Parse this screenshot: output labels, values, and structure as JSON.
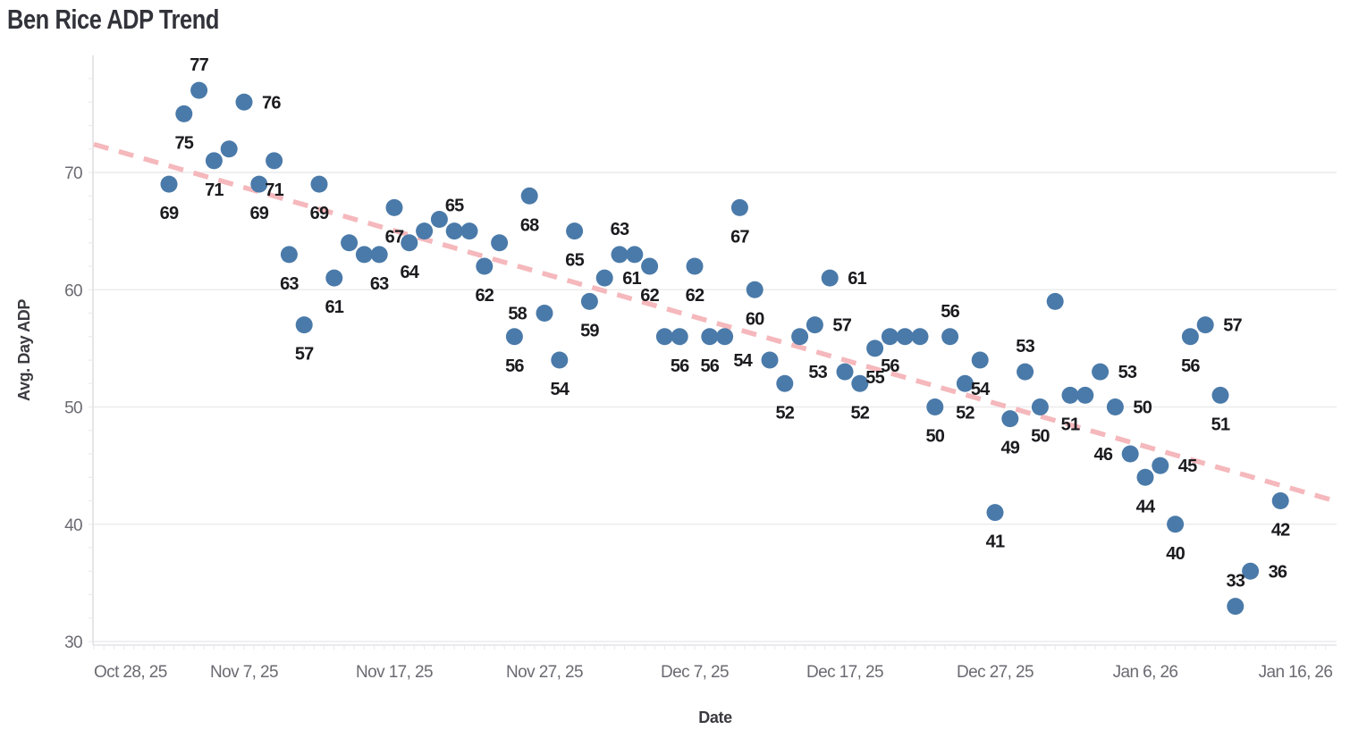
{
  "page_title": "Ben Rice ADP Trend",
  "chart_data": {
    "type": "scatter",
    "title": "Ben Rice ADP Trend",
    "xlabel": "Date",
    "ylabel": "Avg. Day ADP",
    "x_axis_start_date": "2025-10-28",
    "x_tick_labels": [
      "Oct 28, 25",
      "Nov 7, 25",
      "Nov 17, 25",
      "Nov 27, 25",
      "Dec 7, 25",
      "Dec 17, 25",
      "Dec 27, 25",
      "Jan 6, 26",
      "Jan 16, 26"
    ],
    "x_tick_day_offsets": [
      0,
      10,
      20,
      30,
      40,
      50,
      60,
      70,
      80
    ],
    "y_ticks": [
      30,
      40,
      50,
      60,
      70
    ],
    "ylim": [
      29.5,
      80
    ],
    "grid": true,
    "legend": "none",
    "point_color": "#4a7aa9",
    "point_radius": 9.5,
    "trend_color": "#f5b8bc",
    "trend_line": {
      "style": "dashed",
      "start_day": 0,
      "start_value": 72.4,
      "end_day": 82.6,
      "end_value": 42.0
    },
    "points": [
      {
        "date": "2025-11-02",
        "value": 69,
        "label": "69",
        "label_pos": "below"
      },
      {
        "date": "2025-11-03",
        "value": 75,
        "label": "75",
        "label_pos": "below"
      },
      {
        "date": "2025-11-04",
        "value": 77,
        "label": "77",
        "label_pos": "above"
      },
      {
        "date": "2025-11-05",
        "value": 71,
        "label": "71",
        "label_pos": "below"
      },
      {
        "date": "2025-11-06",
        "value": 72,
        "label": "",
        "label_pos": "none"
      },
      {
        "date": "2025-11-07",
        "value": 76,
        "label": "76",
        "label_pos": "right"
      },
      {
        "date": "2025-11-08",
        "value": 69,
        "label": "69",
        "label_pos": "below"
      },
      {
        "date": "2025-11-09",
        "value": 71,
        "label": "71",
        "label_pos": "below"
      },
      {
        "date": "2025-11-10",
        "value": 63,
        "label": "63",
        "label_pos": "below"
      },
      {
        "date": "2025-11-11",
        "value": 57,
        "label": "57",
        "label_pos": "below"
      },
      {
        "date": "2025-11-12",
        "value": 69,
        "label": "69",
        "label_pos": "below"
      },
      {
        "date": "2025-11-13",
        "value": 61,
        "label": "61",
        "label_pos": "below"
      },
      {
        "date": "2025-11-14",
        "value": 64,
        "label": "",
        "label_pos": "none"
      },
      {
        "date": "2025-11-15",
        "value": 63,
        "label": "",
        "label_pos": "none"
      },
      {
        "date": "2025-11-16",
        "value": 63,
        "label": "63",
        "label_pos": "below"
      },
      {
        "date": "2025-11-17",
        "value": 67,
        "label": "67",
        "label_pos": "below"
      },
      {
        "date": "2025-11-18",
        "value": 64,
        "label": "64",
        "label_pos": "below"
      },
      {
        "date": "2025-11-19",
        "value": 65,
        "label": "",
        "label_pos": "none"
      },
      {
        "date": "2025-11-20",
        "value": 66,
        "label": "",
        "label_pos": "none"
      },
      {
        "date": "2025-11-21",
        "value": 65,
        "label": "65",
        "label_pos": "above"
      },
      {
        "date": "2025-11-22",
        "value": 65,
        "label": "",
        "label_pos": "none"
      },
      {
        "date": "2025-11-23",
        "value": 62,
        "label": "62",
        "label_pos": "below"
      },
      {
        "date": "2025-11-24",
        "value": 64,
        "label": "",
        "label_pos": "none"
      },
      {
        "date": "2025-11-25",
        "value": 56,
        "label": "56",
        "label_pos": "below"
      },
      {
        "date": "2025-11-26",
        "value": 68,
        "label": "68",
        "label_pos": "below"
      },
      {
        "date": "2025-11-27",
        "value": 58,
        "label": "58",
        "label_pos": "left"
      },
      {
        "date": "2025-11-28",
        "value": 54,
        "label": "54",
        "label_pos": "below"
      },
      {
        "date": "2025-11-29",
        "value": 65,
        "label": "65",
        "label_pos": "below"
      },
      {
        "date": "2025-11-30",
        "value": 59,
        "label": "59",
        "label_pos": "below"
      },
      {
        "date": "2025-12-01",
        "value": 61,
        "label": "61",
        "label_pos": "right"
      },
      {
        "date": "2025-12-02",
        "value": 63,
        "label": "63",
        "label_pos": "above"
      },
      {
        "date": "2025-12-03",
        "value": 63,
        "label": "",
        "label_pos": "none"
      },
      {
        "date": "2025-12-04",
        "value": 62,
        "label": "62",
        "label_pos": "below"
      },
      {
        "date": "2025-12-05",
        "value": 56,
        "label": "",
        "label_pos": "none"
      },
      {
        "date": "2025-12-06",
        "value": 56,
        "label": "56",
        "label_pos": "below"
      },
      {
        "date": "2025-12-07",
        "value": 62,
        "label": "62",
        "label_pos": "below"
      },
      {
        "date": "2025-12-08",
        "value": 56,
        "label": "56",
        "label_pos": "below"
      },
      {
        "date": "2025-12-09",
        "value": 56,
        "label": "",
        "label_pos": "none"
      },
      {
        "date": "2025-12-10",
        "value": 67,
        "label": "67",
        "label_pos": "below"
      },
      {
        "date": "2025-12-11",
        "value": 60,
        "label": "60",
        "label_pos": "below"
      },
      {
        "date": "2025-12-12",
        "value": 54,
        "label": "54",
        "label_pos": "left"
      },
      {
        "date": "2025-12-13",
        "value": 52,
        "label": "52",
        "label_pos": "below"
      },
      {
        "date": "2025-12-14",
        "value": 56,
        "label": "",
        "label_pos": "none"
      },
      {
        "date": "2025-12-15",
        "value": 57,
        "label": "57",
        "label_pos": "right"
      },
      {
        "date": "2025-12-16",
        "value": 61,
        "label": "61",
        "label_pos": "right"
      },
      {
        "date": "2025-12-17",
        "value": 53,
        "label": "53",
        "label_pos": "left"
      },
      {
        "date": "2025-12-18",
        "value": 52,
        "label": "52",
        "label_pos": "below"
      },
      {
        "date": "2025-12-19",
        "value": 55,
        "label": "55",
        "label_pos": "below"
      },
      {
        "date": "2025-12-20",
        "value": 56,
        "label": "56",
        "label_pos": "below"
      },
      {
        "date": "2025-12-21",
        "value": 56,
        "label": "",
        "label_pos": "none"
      },
      {
        "date": "2025-12-22",
        "value": 56,
        "label": "",
        "label_pos": "none"
      },
      {
        "date": "2025-12-23",
        "value": 50,
        "label": "50",
        "label_pos": "below"
      },
      {
        "date": "2025-12-24",
        "value": 56,
        "label": "56",
        "label_pos": "above"
      },
      {
        "date": "2025-12-25",
        "value": 52,
        "label": "52",
        "label_pos": "below"
      },
      {
        "date": "2025-12-26",
        "value": 54,
        "label": "54",
        "label_pos": "below"
      },
      {
        "date": "2025-12-27",
        "value": 41,
        "label": "41",
        "label_pos": "below"
      },
      {
        "date": "2025-12-28",
        "value": 49,
        "label": "49",
        "label_pos": "below"
      },
      {
        "date": "2025-12-29",
        "value": 53,
        "label": "53",
        "label_pos": "above"
      },
      {
        "date": "2025-12-30",
        "value": 50,
        "label": "50",
        "label_pos": "below"
      },
      {
        "date": "2025-12-31",
        "value": 59,
        "label": "",
        "label_pos": "none"
      },
      {
        "date": "2026-01-01",
        "value": 51,
        "label": "51",
        "label_pos": "below"
      },
      {
        "date": "2026-01-02",
        "value": 51,
        "label": "",
        "label_pos": "none"
      },
      {
        "date": "2026-01-03",
        "value": 53,
        "label": "53",
        "label_pos": "right"
      },
      {
        "date": "2026-01-04",
        "value": 50,
        "label": "50",
        "label_pos": "right"
      },
      {
        "date": "2026-01-05",
        "value": 46,
        "label": "46",
        "label_pos": "left"
      },
      {
        "date": "2026-01-06",
        "value": 44,
        "label": "44",
        "label_pos": "below"
      },
      {
        "date": "2026-01-07",
        "value": 45,
        "label": "45",
        "label_pos": "right"
      },
      {
        "date": "2026-01-08",
        "value": 40,
        "label": "40",
        "label_pos": "below"
      },
      {
        "date": "2026-01-09",
        "value": 56,
        "label": "56",
        "label_pos": "below"
      },
      {
        "date": "2026-01-10",
        "value": 57,
        "label": "57",
        "label_pos": "right"
      },
      {
        "date": "2026-01-11",
        "value": 51,
        "label": "51",
        "label_pos": "below"
      },
      {
        "date": "2026-01-12",
        "value": 33,
        "label": "33",
        "label_pos": "above"
      },
      {
        "date": "2026-01-13",
        "value": 36,
        "label": "36",
        "label_pos": "right"
      },
      {
        "date": "2026-01-15",
        "value": 42,
        "label": "42",
        "label_pos": "below"
      }
    ]
  }
}
